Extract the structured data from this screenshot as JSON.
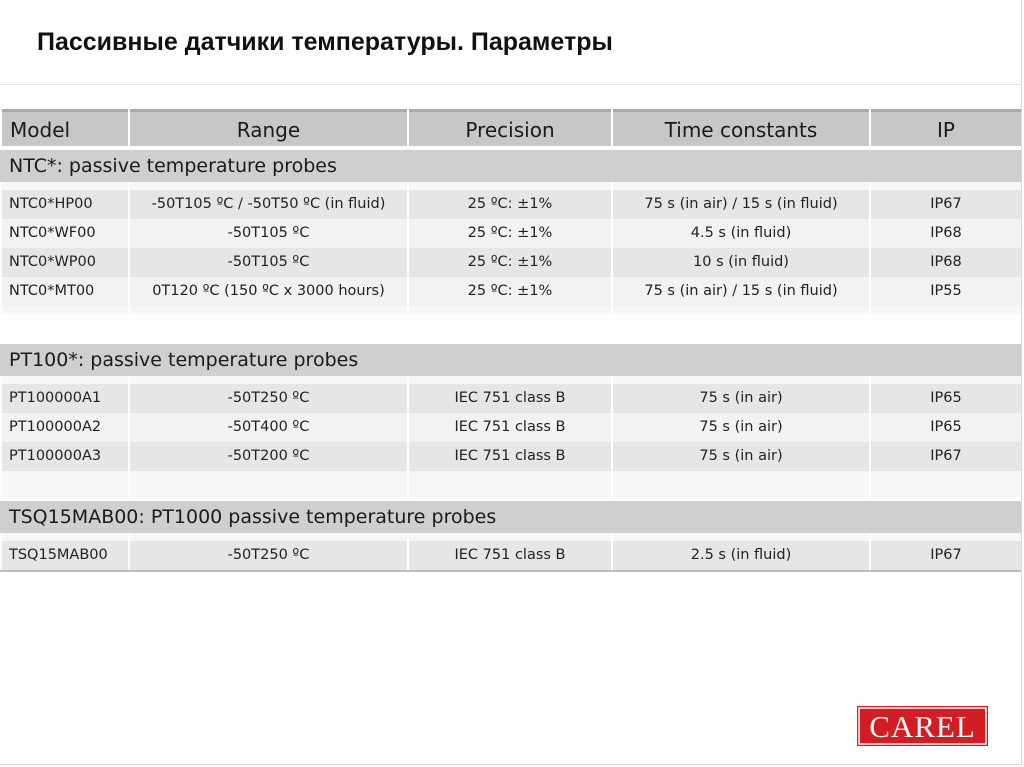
{
  "title": "Пассивные датчики температуры. Параметры",
  "table": {
    "columns": [
      "Model",
      "Range",
      "Precision",
      "Time constants",
      "IP"
    ],
    "groups": [
      {
        "label": "NTC*: passive temperature probes",
        "rows": [
          [
            "NTC0*HP00",
            "-50T105 ºC / -50T50 ºC (in fluid)",
            "25 ºC: ±1%",
            "75 s (in air) / 15 s (in fluid)",
            "IP67"
          ],
          [
            "NTC0*WF00",
            "-50T105 ºC",
            "25 ºC: ±1%",
            "4.5 s (in fluid)",
            "IP68"
          ],
          [
            "NTC0*WP00",
            "-50T105 ºC",
            "25 ºC: ±1%",
            "10 s (in fluid)",
            "IP68"
          ],
          [
            "NTC0*MT00",
            "0T120 ºC (150 ºC x 3000 hours)",
            "25 ºC: ±1%",
            "75 s (in air) / 15 s (in fluid)",
            "IP55"
          ]
        ]
      },
      {
        "label": "PT100*: passive temperature probes",
        "rows": [
          [
            "PT100000A1",
            "-50T250 ºC",
            "IEC 751 class B",
            "75 s (in air)",
            "IP65"
          ],
          [
            "PT100000A2",
            "-50T400 ºC",
            "IEC 751 class B",
            "75 s (in air)",
            "IP65"
          ],
          [
            "PT100000A3",
            "-50T200 ºC",
            "IEC 751 class B",
            "75 s (in air)",
            "IP67"
          ]
        ]
      },
      {
        "label": "TSQ15MAB00: PT1000 passive temperature probes",
        "rows": [
          [
            "TSQ15MAB00",
            "-50T250 ºC",
            "IEC 751 class B",
            "2.5 s (in fluid)",
            "IP67"
          ]
        ]
      }
    ]
  },
  "logo": {
    "text": "CAREL",
    "color": "#d21e22"
  }
}
